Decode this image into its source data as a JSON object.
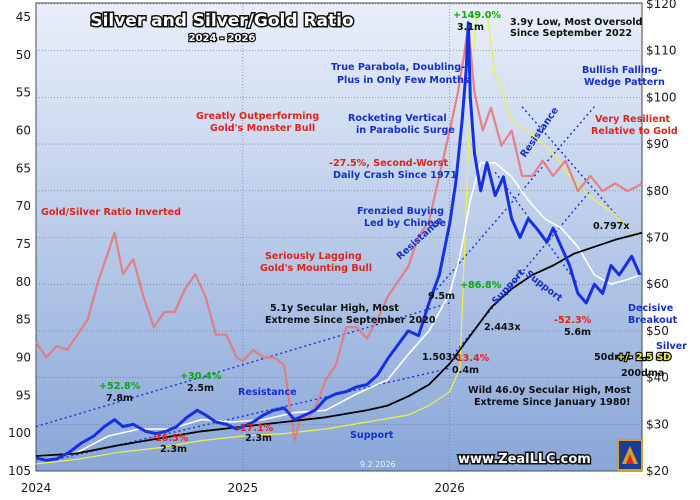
{
  "chart_data": {
    "type": "line",
    "title": "Silver and Silver/Gold Ratio",
    "subtitle": "2024 - 2026",
    "x_ticks": [
      "2024",
      "2025",
      "2026"
    ],
    "y_left": {
      "label": "Gold/Silver Ratio Inverted",
      "ticks": [
        45,
        50,
        55,
        60,
        65,
        70,
        75,
        80,
        85,
        90,
        95,
        100,
        105
      ],
      "range": [
        45,
        105
      ],
      "inverted": true
    },
    "y_right": {
      "ticks": [
        "$120",
        "$110",
        "$100",
        "$90",
        "$80",
        "$70",
        "$60",
        "$50",
        "$40",
        "$30",
        "$20"
      ],
      "range": [
        20,
        120
      ]
    },
    "date_stamp": "9.2.2026",
    "website": "www.ZealLLC.com",
    "series": [
      {
        "name": "Silver",
        "axis": "right",
        "color": "#1530e0",
        "points": [
          [
            2024.0,
            22.8
          ],
          [
            2024.05,
            22.3
          ],
          [
            2024.1,
            22.6
          ],
          [
            2024.16,
            24.0
          ],
          [
            2024.22,
            26.0
          ],
          [
            2024.28,
            27.5
          ],
          [
            2024.33,
            29.5
          ],
          [
            2024.38,
            31.0
          ],
          [
            2024.42,
            29.5
          ],
          [
            2024.47,
            30.0
          ],
          [
            2024.53,
            28.5
          ],
          [
            2024.58,
            28.0
          ],
          [
            2024.63,
            28.5
          ],
          [
            2024.68,
            29.5
          ],
          [
            2024.73,
            31.5
          ],
          [
            2024.78,
            33.0
          ],
          [
            2024.82,
            32.0
          ],
          [
            2024.87,
            30.5
          ],
          [
            2024.92,
            30.0
          ],
          [
            2024.97,
            29.0
          ],
          [
            2025.0,
            29.5
          ],
          [
            2025.05,
            30.5
          ],
          [
            2025.1,
            32.0
          ],
          [
            2025.15,
            33.0
          ],
          [
            2025.2,
            33.5
          ],
          [
            2025.25,
            31.0
          ],
          [
            2025.3,
            32.0
          ],
          [
            2025.35,
            33.0
          ],
          [
            2025.4,
            35.5
          ],
          [
            2025.45,
            36.5
          ],
          [
            2025.5,
            37.0
          ],
          [
            2025.55,
            38.0
          ],
          [
            2025.6,
            38.5
          ],
          [
            2025.65,
            40.5
          ],
          [
            2025.7,
            44.0
          ],
          [
            2025.75,
            47.0
          ],
          [
            2025.8,
            50.0
          ],
          [
            2025.85,
            49.0
          ],
          [
            2025.9,
            56.0
          ],
          [
            2025.95,
            62.0
          ],
          [
            2026.0,
            73.0
          ],
          [
            2026.03,
            82.0
          ],
          [
            2026.06,
            95.0
          ],
          [
            2026.08,
            106.0
          ],
          [
            2026.09,
            116.0
          ],
          [
            2026.1,
            100.0
          ],
          [
            2026.12,
            88.0
          ],
          [
            2026.15,
            80.0
          ],
          [
            2026.18,
            86.0
          ],
          [
            2026.22,
            79.0
          ],
          [
            2026.26,
            83.0
          ],
          [
            2026.3,
            74.0
          ],
          [
            2026.34,
            70.0
          ],
          [
            2026.38,
            74.0
          ],
          [
            2026.42,
            72.0
          ],
          [
            2026.47,
            69.0
          ],
          [
            2026.5,
            72.0
          ],
          [
            2026.54,
            68.0
          ],
          [
            2026.58,
            64.0
          ],
          [
            2026.62,
            58.0
          ],
          [
            2026.66,
            56.0
          ],
          [
            2026.7,
            60.0
          ],
          [
            2026.74,
            58.0
          ],
          [
            2026.78,
            64.0
          ],
          [
            2026.82,
            62.0
          ],
          [
            2026.85,
            64.0
          ],
          [
            2026.88,
            66.0
          ],
          [
            2026.92,
            62.0
          ]
        ]
      },
      {
        "name": "Gold/Silver Ratio Inverted",
        "axis": "left",
        "color": "#e87878",
        "points": [
          [
            2024.0,
            88.0
          ],
          [
            2024.05,
            90.0
          ],
          [
            2024.1,
            88.5
          ],
          [
            2024.15,
            89.0
          ],
          [
            2024.2,
            87.0
          ],
          [
            2024.25,
            85.0
          ],
          [
            2024.3,
            80.0
          ],
          [
            2024.35,
            76.0
          ],
          [
            2024.38,
            73.5
          ],
          [
            2024.42,
            79.0
          ],
          [
            2024.47,
            77.0
          ],
          [
            2024.52,
            82.0
          ],
          [
            2024.57,
            86.0
          ],
          [
            2024.62,
            84.0
          ],
          [
            2024.67,
            84.0
          ],
          [
            2024.72,
            81.0
          ],
          [
            2024.77,
            79.0
          ],
          [
            2024.82,
            82.0
          ],
          [
            2024.87,
            87.0
          ],
          [
            2024.92,
            87.0
          ],
          [
            2024.97,
            90.0
          ],
          [
            2025.0,
            90.5
          ],
          [
            2025.05,
            89.0
          ],
          [
            2025.1,
            90.0
          ],
          [
            2025.15,
            90.0
          ],
          [
            2025.2,
            91.0
          ],
          [
            2025.25,
            101.0
          ],
          [
            2025.28,
            98.0
          ],
          [
            2025.32,
            98.0
          ],
          [
            2025.36,
            96.0
          ],
          [
            2025.4,
            93.0
          ],
          [
            2025.45,
            91.0
          ],
          [
            2025.5,
            86.0
          ],
          [
            2025.55,
            86.0
          ],
          [
            2025.6,
            87.5
          ],
          [
            2025.65,
            85.0
          ],
          [
            2025.7,
            82.0
          ],
          [
            2025.75,
            80.0
          ],
          [
            2025.8,
            78.0
          ],
          [
            2025.85,
            74.0
          ],
          [
            2025.9,
            72.0
          ],
          [
            2025.95,
            66.0
          ],
          [
            2026.0,
            60.0
          ],
          [
            2026.04,
            55.0
          ],
          [
            2026.07,
            50.0
          ],
          [
            2026.09,
            46.0
          ],
          [
            2026.1,
            49.0
          ],
          [
            2026.12,
            55.0
          ],
          [
            2026.16,
            60.0
          ],
          [
            2026.2,
            57.0
          ],
          [
            2026.25,
            62.0
          ],
          [
            2026.3,
            60.0
          ],
          [
            2026.35,
            66.0
          ],
          [
            2026.4,
            66.0
          ],
          [
            2026.45,
            64.0
          ],
          [
            2026.5,
            66.0
          ],
          [
            2026.56,
            64.0
          ],
          [
            2026.62,
            68.0
          ],
          [
            2026.68,
            66.0
          ],
          [
            2026.74,
            68.0
          ],
          [
            2026.8,
            67.0
          ],
          [
            2026.86,
            68.0
          ],
          [
            2026.9,
            67.5
          ],
          [
            2026.93,
            67.0
          ]
        ]
      },
      {
        "name": "50dma",
        "axis": "right",
        "color": "#ffffff",
        "points": [
          [
            2024.0,
            23.0
          ],
          [
            2024.2,
            24.0
          ],
          [
            2024.35,
            27.5
          ],
          [
            2024.5,
            29.0
          ],
          [
            2024.65,
            29.0
          ],
          [
            2024.8,
            31.0
          ],
          [
            2024.95,
            30.5
          ],
          [
            2025.1,
            31.0
          ],
          [
            2025.25,
            32.5
          ],
          [
            2025.4,
            33.0
          ],
          [
            2025.55,
            36.5
          ],
          [
            2025.7,
            39.5
          ],
          [
            2025.8,
            45.0
          ],
          [
            2025.9,
            50.0
          ],
          [
            2026.0,
            58.0
          ],
          [
            2026.05,
            66.0
          ],
          [
            2026.1,
            78.0
          ],
          [
            2026.15,
            86.0
          ],
          [
            2026.22,
            86.0
          ],
          [
            2026.3,
            83.0
          ],
          [
            2026.38,
            78.0
          ],
          [
            2026.46,
            74.0
          ],
          [
            2026.54,
            72.0
          ],
          [
            2026.62,
            68.0
          ],
          [
            2026.7,
            62.0
          ],
          [
            2026.78,
            60.0
          ],
          [
            2026.86,
            61.0
          ],
          [
            2026.92,
            62.0
          ]
        ]
      },
      {
        "name": "200dma",
        "axis": "right",
        "color": "#000000",
        "points": [
          [
            2024.0,
            23.2
          ],
          [
            2024.2,
            23.8
          ],
          [
            2024.4,
            25.5
          ],
          [
            2024.6,
            27.0
          ],
          [
            2024.8,
            28.5
          ],
          [
            2025.0,
            29.5
          ],
          [
            2025.2,
            30.5
          ],
          [
            2025.4,
            31.5
          ],
          [
            2025.6,
            33.0
          ],
          [
            2025.7,
            34.0
          ],
          [
            2025.8,
            36.0
          ],
          [
            2025.9,
            38.5
          ],
          [
            2026.0,
            43.0
          ],
          [
            2026.1,
            49.0
          ],
          [
            2026.2,
            55.0
          ],
          [
            2026.3,
            59.0
          ],
          [
            2026.4,
            62.0
          ],
          [
            2026.5,
            64.0
          ],
          [
            2026.6,
            66.5
          ],
          [
            2026.7,
            68.0
          ],
          [
            2026.8,
            69.5
          ],
          [
            2026.93,
            71.0
          ]
        ]
      },
      {
        "name": "+/- 2.5 SD",
        "axis": "right",
        "color": "#f2f040",
        "points": [
          [
            2024.0,
            21.5
          ],
          [
            2024.2,
            22.5
          ],
          [
            2024.4,
            24.0
          ],
          [
            2024.6,
            25.0
          ],
          [
            2024.8,
            26.5
          ],
          [
            2025.0,
            27.5
          ],
          [
            2025.2,
            28.0
          ],
          [
            2025.4,
            29.0
          ],
          [
            2025.6,
            30.5
          ],
          [
            2025.8,
            32.0
          ],
          [
            2025.9,
            34.0
          ],
          [
            2026.0,
            37.0
          ],
          [
            2026.05,
            42.0
          ],
          [
            2026.1,
            100.0
          ],
          [
            2026.13,
            118.0
          ],
          [
            2026.18,
            118.0
          ],
          [
            2026.22,
            105.0
          ],
          [
            2026.3,
            95.0
          ],
          [
            2026.4,
            92.0
          ],
          [
            2026.5,
            88.0
          ],
          [
            2026.6,
            82.0
          ],
          [
            2026.7,
            78.0
          ],
          [
            2026.8,
            75.0
          ],
          [
            2026.9,
            70.0
          ]
        ]
      }
    ],
    "annotations": [
      {
        "text": "+149.0%",
        "color": "green"
      },
      {
        "text": "3.1m",
        "color": "black"
      },
      {
        "text": "3.9y Low, Most Oversold",
        "color": "black"
      },
      {
        "text": "Since September 2022",
        "color": "black"
      },
      {
        "text": "True Parabola, Doubling-",
        "color": "blue"
      },
      {
        "text": "Plus in Only Few Months",
        "color": "blue"
      },
      {
        "text": "Bullish Falling-",
        "color": "blue"
      },
      {
        "text": "Wedge Pattern",
        "color": "blue"
      },
      {
        "text": "Greatly Outperforming",
        "color": "red"
      },
      {
        "text": "Gold's Monster Bull",
        "color": "red"
      },
      {
        "text": "Rocketing Vertical",
        "color": "blue"
      },
      {
        "text": "in Parabolic Surge",
        "color": "blue"
      },
      {
        "text": "Very Resilient",
        "color": "red"
      },
      {
        "text": "Relative to Gold",
        "color": "red"
      },
      {
        "text": "-27.5%, Second-Worst",
        "color": "red"
      },
      {
        "text": "Daily Crash Since 1971",
        "color": "blue"
      },
      {
        "text": "Gold/Silver Ratio Inverted",
        "color": "red"
      },
      {
        "text": "Frenzied Buying",
        "color": "blue"
      },
      {
        "text": "Led by Chinese",
        "color": "blue"
      },
      {
        "text": "0.797x",
        "color": "black"
      },
      {
        "text": "Seriously Lagging",
        "color": "red"
      },
      {
        "text": "Gold's Mounting Bull",
        "color": "red"
      },
      {
        "text": "+86.8%",
        "color": "green"
      },
      {
        "text": "9.5m",
        "color": "black"
      },
      {
        "text": "5.1y Secular High, Most",
        "color": "black"
      },
      {
        "text": "Extreme Since September 2020",
        "color": "black"
      },
      {
        "text": "2.443x",
        "color": "black"
      },
      {
        "text": "-52.3%",
        "color": "red"
      },
      {
        "text": "5.6m",
        "color": "black"
      },
      {
        "text": "Decisive",
        "color": "blue"
      },
      {
        "text": "Breakout",
        "color": "blue"
      },
      {
        "text": "-13.4%",
        "color": "red"
      },
      {
        "text": "0.4m",
        "color": "black"
      },
      {
        "text": "Silver",
        "color": "blue"
      },
      {
        "text": "50dma",
        "color": "black"
      },
      {
        "text": "+/- 2.5 SD",
        "color": "yellow"
      },
      {
        "text": "200dma",
        "color": "black"
      },
      {
        "text": "+52.8%",
        "color": "green"
      },
      {
        "text": "7.8m",
        "color": "black"
      },
      {
        "text": "+30.4%",
        "color": "green"
      },
      {
        "text": "2.5m",
        "color": "black"
      },
      {
        "text": "1.503x",
        "color": "black"
      },
      {
        "text": "Wild 46.0y Secular High, Most",
        "color": "black"
      },
      {
        "text": "Extreme Since January 1980!",
        "color": "black"
      },
      {
        "text": "-16.5%",
        "color": "red"
      },
      {
        "text": "2.3m",
        "color": "black"
      },
      {
        "text": "-17.1%",
        "color": "red"
      },
      {
        "text": "2.3m",
        "color": "black"
      },
      {
        "text": "Resistance",
        "color": "blue"
      },
      {
        "text": "Resistance",
        "color": "blue"
      },
      {
        "text": "Resistance",
        "color": "blue"
      },
      {
        "text": "Support",
        "color": "blue"
      },
      {
        "text": "Support",
        "color": "blue"
      },
      {
        "text": "Support",
        "color": "blue"
      }
    ]
  }
}
